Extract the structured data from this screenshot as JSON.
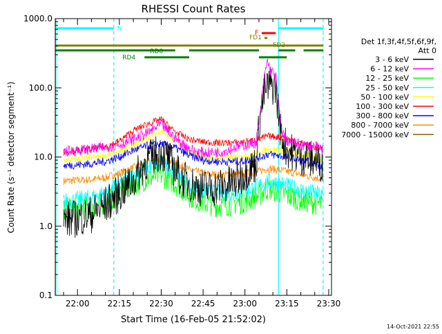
{
  "chart_data": {
    "type": "line",
    "title": "RHESSI Count Rates",
    "xlabel": "Start Time (16-Feb-05 21:52:02)",
    "ylabel": "Count Rate (s⁻¹ detector segment⁻¹)",
    "y_scale": "log",
    "ylim": [
      0.1,
      1000
    ],
    "y_ticks": [
      "0.1",
      "1.0",
      "10.0",
      "100.0",
      "1000.0"
    ],
    "xlim": [
      "21:52:02",
      "23:31:00"
    ],
    "x_ticks": [
      "22:00",
      "22:15",
      "22:30",
      "22:45",
      "23:00",
      "23:15",
      "23:30"
    ],
    "grid": false,
    "legend_position": "right",
    "legend_header": [
      "Det 1f,3f,4f,5f,6f,9f,",
      "Att 0"
    ],
    "series": [
      {
        "name": "3 - 6 keV",
        "color": "#000000",
        "x": [
          "21:55",
          "22:00",
          "22:05",
          "22:10",
          "22:15",
          "22:20",
          "22:25",
          "22:30",
          "22:33",
          "22:37",
          "22:42",
          "22:47",
          "22:52",
          "22:57",
          "23:00",
          "23:04",
          "23:05",
          "23:07",
          "23:09",
          "23:11",
          "23:13",
          "23:15",
          "23:20",
          "23:25",
          "23:28"
        ],
        "values": [
          1.2,
          1.3,
          1.5,
          2.0,
          3.0,
          4.5,
          9.0,
          12,
          9,
          5,
          3.8,
          3.5,
          3.8,
          4.5,
          6,
          8,
          30,
          90,
          110,
          100,
          20,
          13,
          10,
          9,
          8
        ]
      },
      {
        "name": "6 - 12 keV",
        "color": "#ff00ff",
        "x": [
          "21:55",
          "22:00",
          "22:05",
          "22:10",
          "22:15",
          "22:20",
          "22:25",
          "22:30",
          "22:33",
          "22:37",
          "22:42",
          "22:47",
          "22:52",
          "22:57",
          "23:00",
          "23:04",
          "23:05",
          "23:07",
          "23:08",
          "23:09",
          "23:11",
          "23:13",
          "23:15",
          "23:20",
          "23:25",
          "23:28"
        ],
        "values": [
          12,
          12.5,
          13,
          14,
          15,
          18,
          22,
          30,
          22,
          16,
          12,
          11.5,
          12,
          14,
          15,
          16,
          30,
          150,
          250,
          180,
          150,
          25,
          17,
          15,
          14,
          13
        ]
      },
      {
        "name": "12 - 25 keV",
        "color": "#00ff00",
        "x": [
          "21:55",
          "22:00",
          "22:05",
          "22:10",
          "22:15",
          "22:20",
          "22:25",
          "22:30",
          "22:35",
          "22:40",
          "22:45",
          "22:50",
          "22:55",
          "23:00",
          "23:05",
          "23:08",
          "23:12",
          "23:15",
          "23:20",
          "23:25",
          "23:28"
        ],
        "values": [
          1.7,
          1.8,
          1.9,
          2.2,
          3.0,
          4.0,
          5.0,
          5.5,
          4.2,
          2.8,
          2.2,
          2.0,
          2.1,
          2.3,
          2.8,
          3.5,
          3.2,
          2.8,
          2.4,
          2.2,
          2.0
        ]
      },
      {
        "name": "25 - 50 keV",
        "color": "#00ffff",
        "x": [
          "21:55",
          "22:00",
          "22:05",
          "22:10",
          "22:15",
          "22:20",
          "22:25",
          "22:30",
          "22:35",
          "22:40",
          "22:45",
          "22:50",
          "22:55",
          "23:00",
          "23:05",
          "23:08",
          "23:12",
          "23:15",
          "23:20",
          "23:25",
          "23:28"
        ],
        "values": [
          2.3,
          2.4,
          2.6,
          3.0,
          4.0,
          5.5,
          7.0,
          8.0,
          6.5,
          4.0,
          3.2,
          3.0,
          3.1,
          3.3,
          3.8,
          4.4,
          4.2,
          3.8,
          3.3,
          3.0,
          2.7
        ]
      },
      {
        "name": "50 - 100 keV",
        "color": "#ffff00",
        "x": [
          "21:55",
          "22:00",
          "22:05",
          "22:10",
          "22:15",
          "22:20",
          "22:25",
          "22:30",
          "22:35",
          "22:40",
          "22:45",
          "22:50",
          "22:55",
          "23:00",
          "23:05",
          "23:08",
          "23:12",
          "23:15",
          "23:20",
          "23:25",
          "23:28"
        ],
        "values": [
          9,
          9.3,
          9.8,
          10.5,
          12,
          15,
          19,
          24,
          17,
          12,
          10,
          9.7,
          9.8,
          10.2,
          11.5,
          13,
          12.5,
          12,
          11,
          10.2,
          9.6
        ]
      },
      {
        "name": "100 - 300 keV",
        "color": "#ff0000",
        "x": [
          "21:55",
          "22:00",
          "22:05",
          "22:10",
          "22:15",
          "22:20",
          "22:25",
          "22:30",
          "22:35",
          "22:40",
          "22:45",
          "22:50",
          "22:55",
          "23:00",
          "23:05",
          "23:08",
          "23:12",
          "23:15",
          "23:20",
          "23:25",
          "23:28"
        ],
        "values": [
          12,
          12.5,
          13,
          14,
          17,
          24,
          30,
          35,
          23,
          18,
          16.5,
          16,
          16,
          16.5,
          18,
          20,
          19.5,
          18.5,
          16,
          14,
          12.5
        ]
      },
      {
        "name": "300 - 800 keV",
        "color": "#0000ff",
        "x": [
          "21:55",
          "22:00",
          "22:05",
          "22:10",
          "22:15",
          "22:20",
          "22:25",
          "22:30",
          "22:35",
          "22:40",
          "22:45",
          "22:50",
          "22:55",
          "23:00",
          "23:05",
          "23:08",
          "23:12",
          "23:15",
          "23:20",
          "23:25",
          "23:28"
        ],
        "values": [
          7.5,
          7.7,
          8.0,
          8.6,
          10,
          12.5,
          14.5,
          15.5,
          13.5,
          10.5,
          9,
          8.6,
          8.6,
          8.8,
          9.8,
          11,
          10.5,
          10,
          9,
          8,
          7.3
        ]
      },
      {
        "name": "800 - 7000 keV",
        "color": "#ff8c00",
        "x": [
          "21:55",
          "22:00",
          "22:05",
          "22:10",
          "22:15",
          "22:20",
          "22:25",
          "22:30",
          "22:35",
          "22:40",
          "22:45",
          "22:50",
          "22:55",
          "23:00",
          "23:05",
          "23:08",
          "23:12",
          "23:15",
          "23:20",
          "23:25",
          "23:28"
        ],
        "values": [
          4.5,
          4.6,
          4.7,
          5.0,
          5.8,
          7.0,
          8.5,
          9.5,
          8.2,
          6.5,
          5.8,
          5.5,
          5.6,
          5.7,
          6.2,
          6.8,
          6.5,
          6.2,
          5.6,
          5.1,
          4.8
        ]
      },
      {
        "name": "7000 - 15000 keV",
        "color": "#806000",
        "x": [],
        "values": []
      }
    ],
    "state_bars": [
      {
        "label": "N",
        "color": "#00ffff",
        "level": 1,
        "segments": [
          [
            "21:52",
            "22:13"
          ],
          [
            "23:12",
            "23:28"
          ]
        ]
      },
      {
        "label": "F",
        "color": "#ff0000",
        "level": 2,
        "segments": [
          [
            "23:06",
            "23:11"
          ]
        ]
      },
      {
        "label": "FD1",
        "color": "#808000",
        "level": 3,
        "segments": [
          [
            "23:07",
            "23:08"
          ]
        ]
      },
      {
        "label": "FD2",
        "color": "#808000",
        "level": 4,
        "segments": [
          [
            "21:52",
            "23:28"
          ]
        ]
      },
      {
        "label": "RD0",
        "color": "#008000",
        "level": 5,
        "segments": [
          [
            "21:52",
            "22:35"
          ],
          [
            "22:40",
            "23:05"
          ],
          [
            "23:12",
            "23:18"
          ],
          [
            "23:21",
            "23:28"
          ]
        ]
      },
      {
        "label": "RD4",
        "color": "#008000",
        "level": 6,
        "segments": [
          [
            "22:24",
            "22:40"
          ],
          [
            "23:05",
            "23:15"
          ]
        ]
      }
    ],
    "vlines": [
      {
        "time": "21:52",
        "color": "#00ffff",
        "style": "solid"
      },
      {
        "time": "22:13",
        "color": "#00ffff",
        "style": "dashed"
      },
      {
        "time": "23:12",
        "color": "#00ffff",
        "style": "solid"
      },
      {
        "time": "23:28",
        "color": "#00ffff",
        "style": "dashed"
      }
    ]
  },
  "footer": {
    "timestamp": "14-Oct-2021 22:55"
  }
}
